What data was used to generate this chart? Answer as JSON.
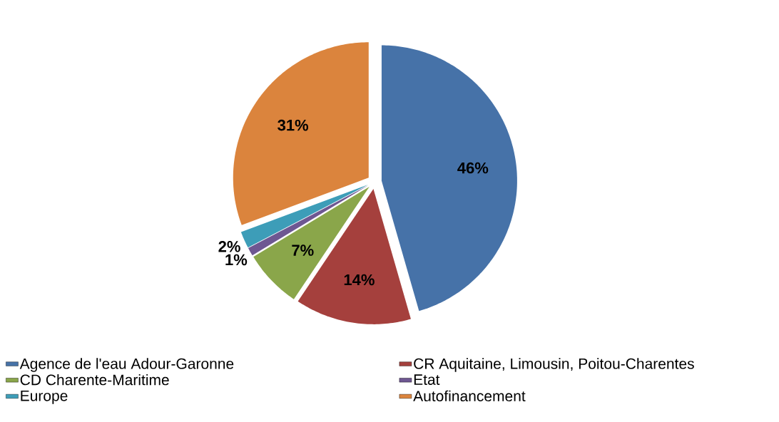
{
  "chart_data": {
    "type": "pie",
    "categories": [
      "Agence de l'eau Adour-Garonne",
      "CR Aquitaine, Limousin, Poitou-Charentes",
      "CD Charente-Maritime",
      "Etat",
      "Europe",
      "Autofinancement"
    ],
    "values": [
      46,
      14,
      7,
      1,
      2,
      31
    ],
    "colors": [
      "#4672a8",
      "#a5403d",
      "#8aa64a",
      "#6e5792",
      "#3d9db8",
      "#db843d"
    ],
    "value_labels": [
      "46%",
      "14%",
      "7%",
      "1%",
      "2%",
      "31%"
    ],
    "legend": "bottom"
  }
}
